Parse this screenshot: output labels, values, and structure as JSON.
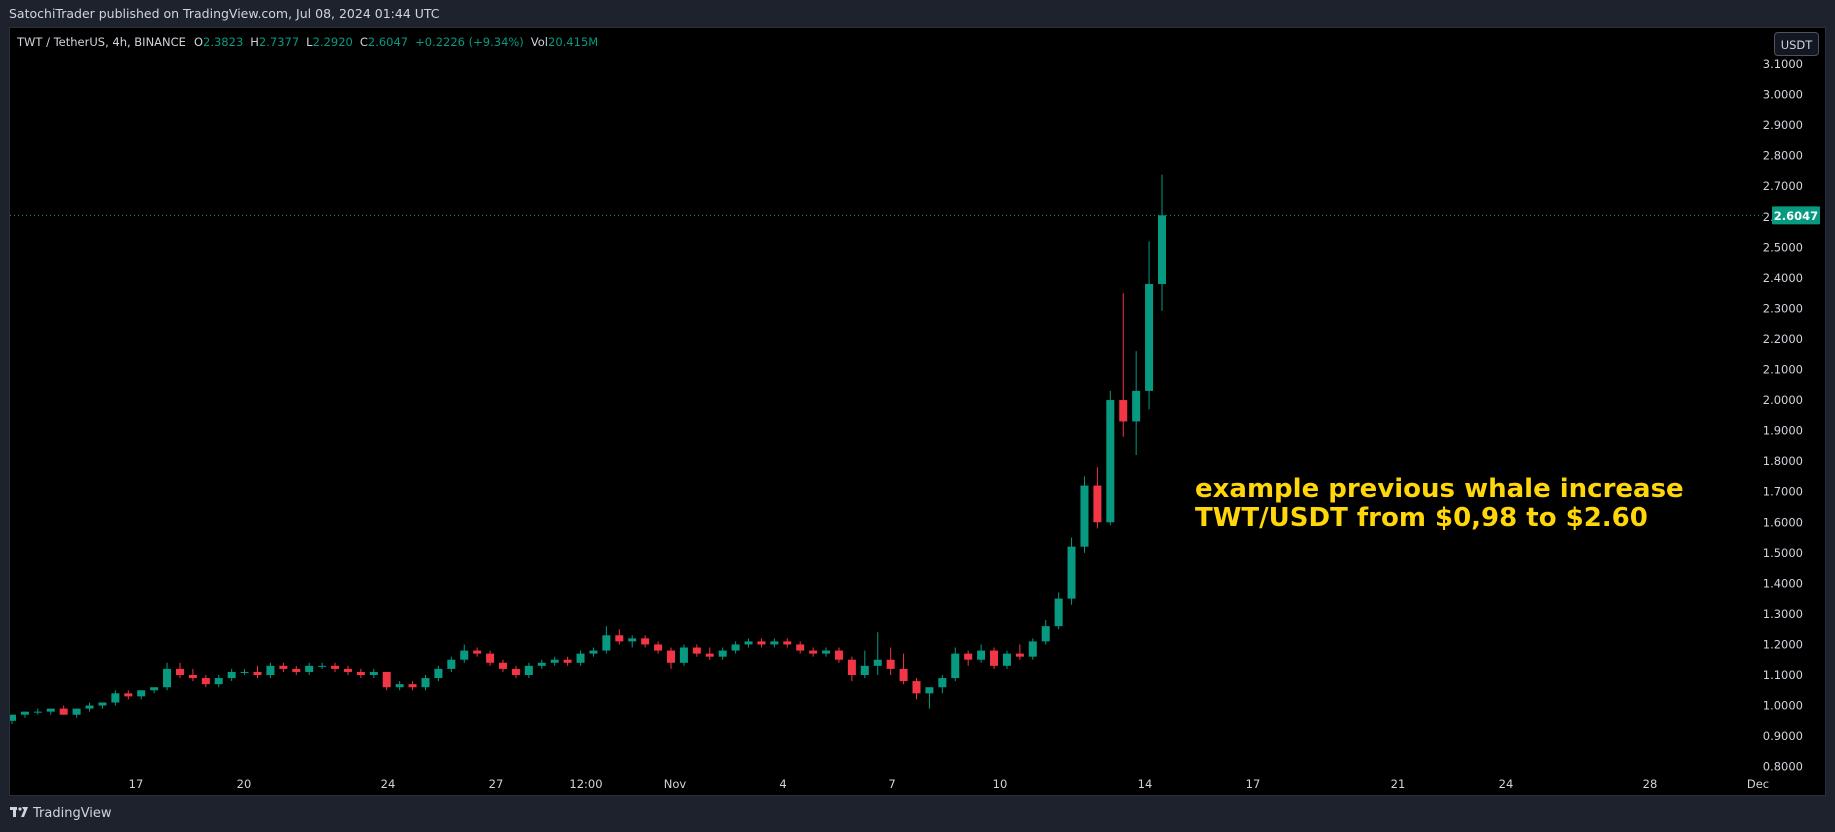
{
  "header": {
    "published": "SatochiTrader published on TradingView.com, Jul 08, 2024 01:44 UTC"
  },
  "legend": {
    "symbol": "TWT / TetherUS, 4h, BINANCE",
    "open_label": "O",
    "open": "2.3823",
    "high_label": "H",
    "high": "2.7377",
    "low_label": "L",
    "low": "2.2920",
    "close_label": "C",
    "close": "2.6047",
    "change": "+0.2226 (+9.34%)",
    "vol_label": "Vol",
    "vol": "20.415M"
  },
  "currency_button": "USDT",
  "annotation": {
    "line1": "example previous whale increase",
    "line2": "TWT/USDT from $0,98 to $2.60"
  },
  "footer": {
    "brand": "TradingView",
    "logo_icon": "tradingview-logo-icon"
  },
  "colors": {
    "up": "#089981",
    "down": "#f23645",
    "background": "#000000",
    "axis_text": "#d1d4dc",
    "annotation": "#ffd60a",
    "last_price_bg": "#089981"
  },
  "chart_data": {
    "type": "candlestick",
    "x_ticks": [
      "17",
      "20",
      "24",
      "27",
      "12:00",
      "Nov",
      "4",
      "7",
      "10",
      "14",
      "17",
      "21",
      "24",
      "28",
      "Dec"
    ],
    "y_ticks": [
      "3.1000",
      "3.0000",
      "2.9000",
      "2.8000",
      "2.7000",
      "2.6000",
      "2.5000",
      "2.4000",
      "2.3000",
      "2.2000",
      "2.1000",
      "2.0000",
      "1.9000",
      "1.8000",
      "1.7000",
      "1.6000",
      "1.5000",
      "1.4000",
      "1.3000",
      "1.2000",
      "1.1000",
      "1.0000",
      "0.9000",
      "0.8000"
    ],
    "ylim": [
      0.76,
      3.12
    ],
    "last_price": "2.6047",
    "last_price_value": 2.6047,
    "candles_approx": [
      [
        0.95,
        0.97,
        0.94,
        0.97
      ],
      [
        0.97,
        0.98,
        0.96,
        0.98
      ],
      [
        0.98,
        0.99,
        0.97,
        0.98
      ],
      [
        0.98,
        0.99,
        0.97,
        0.99
      ],
      [
        0.99,
        1.0,
        0.97,
        0.97
      ],
      [
        0.97,
        0.99,
        0.96,
        0.99
      ],
      [
        0.99,
        1.01,
        0.98,
        1.0
      ],
      [
        1.0,
        1.01,
        0.99,
        1.01
      ],
      [
        1.01,
        1.05,
        1.0,
        1.04
      ],
      [
        1.04,
        1.05,
        1.02,
        1.03
      ],
      [
        1.03,
        1.05,
        1.02,
        1.05
      ],
      [
        1.05,
        1.06,
        1.04,
        1.06
      ],
      [
        1.06,
        1.14,
        1.05,
        1.12
      ],
      [
        1.12,
        1.14,
        1.09,
        1.1
      ],
      [
        1.1,
        1.12,
        1.08,
        1.09
      ],
      [
        1.09,
        1.1,
        1.06,
        1.07
      ],
      [
        1.07,
        1.1,
        1.06,
        1.09
      ],
      [
        1.09,
        1.12,
        1.08,
        1.11
      ],
      [
        1.11,
        1.12,
        1.1,
        1.11
      ],
      [
        1.11,
        1.13,
        1.09,
        1.1
      ],
      [
        1.1,
        1.14,
        1.09,
        1.13
      ],
      [
        1.13,
        1.14,
        1.11,
        1.12
      ],
      [
        1.12,
        1.13,
        1.1,
        1.11
      ],
      [
        1.11,
        1.14,
        1.1,
        1.13
      ],
      [
        1.13,
        1.14,
        1.12,
        1.13
      ],
      [
        1.13,
        1.14,
        1.11,
        1.12
      ],
      [
        1.12,
        1.13,
        1.1,
        1.11
      ],
      [
        1.11,
        1.12,
        1.09,
        1.1
      ],
      [
        1.1,
        1.12,
        1.09,
        1.11
      ],
      [
        1.11,
        1.09,
        1.05,
        1.06
      ],
      [
        1.06,
        1.08,
        1.05,
        1.07
      ],
      [
        1.07,
        1.08,
        1.05,
        1.06
      ],
      [
        1.06,
        1.1,
        1.05,
        1.09
      ],
      [
        1.09,
        1.13,
        1.08,
        1.12
      ],
      [
        1.12,
        1.16,
        1.11,
        1.15
      ],
      [
        1.15,
        1.2,
        1.14,
        1.18
      ],
      [
        1.18,
        1.19,
        1.16,
        1.17
      ],
      [
        1.17,
        1.18,
        1.13,
        1.14
      ],
      [
        1.14,
        1.15,
        1.11,
        1.12
      ],
      [
        1.12,
        1.13,
        1.09,
        1.1
      ],
      [
        1.1,
        1.14,
        1.09,
        1.13
      ],
      [
        1.13,
        1.15,
        1.12,
        1.14
      ],
      [
        1.14,
        1.16,
        1.13,
        1.15
      ],
      [
        1.15,
        1.16,
        1.13,
        1.14
      ],
      [
        1.14,
        1.18,
        1.13,
        1.17
      ],
      [
        1.17,
        1.19,
        1.16,
        1.18
      ],
      [
        1.18,
        1.26,
        1.17,
        1.23
      ],
      [
        1.23,
        1.25,
        1.2,
        1.21
      ],
      [
        1.21,
        1.23,
        1.19,
        1.22
      ],
      [
        1.22,
        1.23,
        1.19,
        1.2
      ],
      [
        1.2,
        1.21,
        1.17,
        1.18
      ],
      [
        1.18,
        1.19,
        1.12,
        1.14
      ],
      [
        1.14,
        1.2,
        1.13,
        1.19
      ],
      [
        1.19,
        1.2,
        1.16,
        1.17
      ],
      [
        1.17,
        1.19,
        1.15,
        1.16
      ],
      [
        1.16,
        1.19,
        1.15,
        1.18
      ],
      [
        1.18,
        1.21,
        1.17,
        1.2
      ],
      [
        1.2,
        1.22,
        1.19,
        1.21
      ],
      [
        1.21,
        1.22,
        1.19,
        1.2
      ],
      [
        1.2,
        1.22,
        1.19,
        1.21
      ],
      [
        1.21,
        1.22,
        1.19,
        1.2
      ],
      [
        1.2,
        1.21,
        1.17,
        1.18
      ],
      [
        1.18,
        1.19,
        1.16,
        1.17
      ],
      [
        1.17,
        1.19,
        1.16,
        1.18
      ],
      [
        1.18,
        1.19,
        1.14,
        1.15
      ],
      [
        1.15,
        1.16,
        1.08,
        1.1
      ],
      [
        1.1,
        1.18,
        1.09,
        1.13
      ],
      [
        1.13,
        1.24,
        1.1,
        1.15
      ],
      [
        1.15,
        1.19,
        1.1,
        1.12
      ],
      [
        1.12,
        1.17,
        1.07,
        1.08
      ],
      [
        1.08,
        1.09,
        1.02,
        1.04
      ],
      [
        1.04,
        1.06,
        0.99,
        1.06
      ],
      [
        1.06,
        1.1,
        1.04,
        1.09
      ],
      [
        1.09,
        1.19,
        1.08,
        1.17
      ],
      [
        1.17,
        1.18,
        1.13,
        1.15
      ],
      [
        1.15,
        1.2,
        1.14,
        1.18
      ],
      [
        1.18,
        1.19,
        1.12,
        1.13
      ],
      [
        1.13,
        1.18,
        1.12,
        1.17
      ],
      [
        1.17,
        1.2,
        1.15,
        1.16
      ],
      [
        1.16,
        1.22,
        1.15,
        1.21
      ],
      [
        1.21,
        1.28,
        1.2,
        1.26
      ],
      [
        1.26,
        1.37,
        1.25,
        1.35
      ],
      [
        1.35,
        1.55,
        1.33,
        1.52
      ],
      [
        1.52,
        1.75,
        1.5,
        1.72
      ],
      [
        1.72,
        1.78,
        1.58,
        1.6
      ],
      [
        1.6,
        2.03,
        1.59,
        2.0
      ],
      [
        2.0,
        2.35,
        1.88,
        1.93
      ],
      [
        1.93,
        2.16,
        1.82,
        2.03
      ],
      [
        2.03,
        2.52,
        1.97,
        2.38
      ],
      [
        2.38,
        2.7377,
        2.292,
        2.6047
      ]
    ]
  }
}
